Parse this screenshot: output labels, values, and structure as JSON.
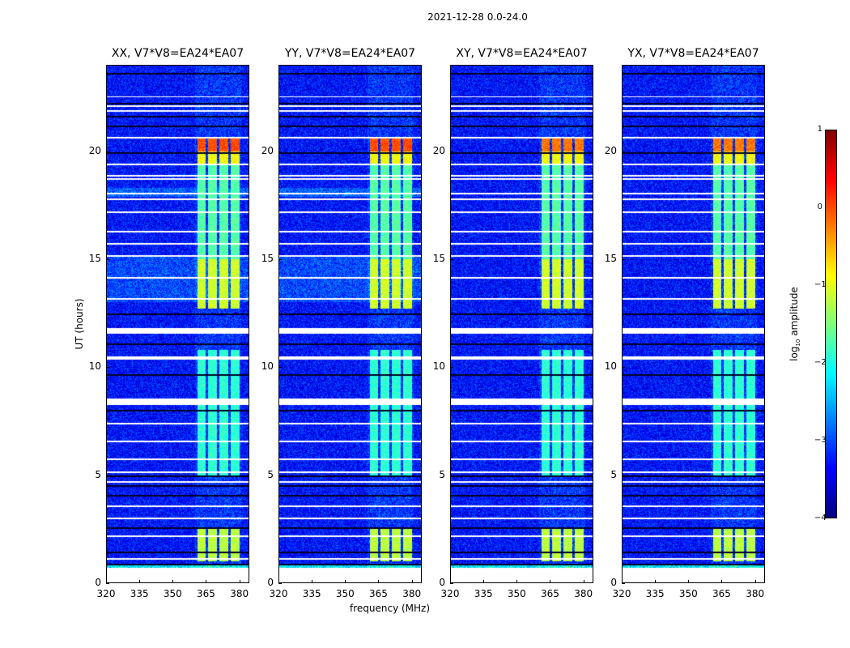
{
  "chart_data": {
    "type": "heatmap",
    "suptitle": "2021-12-28 0.0-24.0",
    "xlabel": "frequency (MHz)",
    "ylabel": "UT (hours)",
    "xlim": [
      320,
      384.5
    ],
    "ylim": [
      0,
      24
    ],
    "xticks": [
      "320",
      "335",
      "350",
      "365",
      "380"
    ],
    "xtick_values": [
      320,
      335,
      350,
      365,
      380
    ],
    "yticks": [
      "0",
      "5",
      "10",
      "15",
      "20"
    ],
    "ytick_values": [
      0,
      5,
      10,
      15,
      20
    ],
    "panels": [
      {
        "title": "XX, V7*V8=EA24*EA07"
      },
      {
        "title": "YY, V7*V8=EA24*EA07"
      },
      {
        "title": "XY, V7*V8=EA24*EA07"
      },
      {
        "title": "YX, V7*V8=EA24*EA07"
      }
    ],
    "background_log10_amplitude": -3.3,
    "signal_channels_mhz": [
      363,
      368,
      373,
      378
    ],
    "signal_regions": [
      {
        "t0": 20.0,
        "t1": 20.6,
        "log10_amplitude": 0.0
      },
      {
        "t0": 19.4,
        "t1": 20.0,
        "log10_amplitude": -0.9
      },
      {
        "t0": 15.0,
        "t1": 19.4,
        "log10_amplitude": -1.7
      },
      {
        "t0": 12.7,
        "t1": 15.0,
        "log10_amplitude": -1.1
      },
      {
        "t0": 5.0,
        "t1": 10.8,
        "log10_amplitude": -1.9
      },
      {
        "t0": 1.0,
        "t1": 2.6,
        "log10_amplitude": -1.2
      }
    ],
    "flagged_white_hours": [
      22.53,
      22.09,
      21.86,
      20.62,
      19.39,
      18.86,
      18.71,
      18.04,
      17.77,
      17.17,
      16.27,
      15.71,
      15.15,
      14.14,
      13.16,
      7.39,
      6.56,
      5.74,
      5.14,
      4.69,
      3.56,
      3.0,
      2.17,
      1.12
    ],
    "flagged_white_bands": [
      [
        11.55,
        11.8
      ],
      [
        10.35,
        10.5
      ],
      [
        8.25,
        8.55
      ]
    ],
    "zero_black_hours": [
      23.6,
      22.2,
      21.6,
      21.15,
      19.9,
      12.45,
      11.06,
      9.64,
      7.99,
      4.95,
      4.5,
      4.05,
      2.55,
      1.43,
      0.86
    ],
    "colorbar": {
      "label": "log10 amplitude",
      "label_main": "log",
      "label_sub": "10",
      "label_rest": " amplitude",
      "range": [
        -4,
        1
      ],
      "ticks": [
        "1",
        "0",
        "−1",
        "−2",
        "−3",
        "−4"
      ],
      "tick_values": [
        1,
        0,
        -1,
        -2,
        -3,
        -4
      ],
      "colormap": "jet"
    }
  }
}
